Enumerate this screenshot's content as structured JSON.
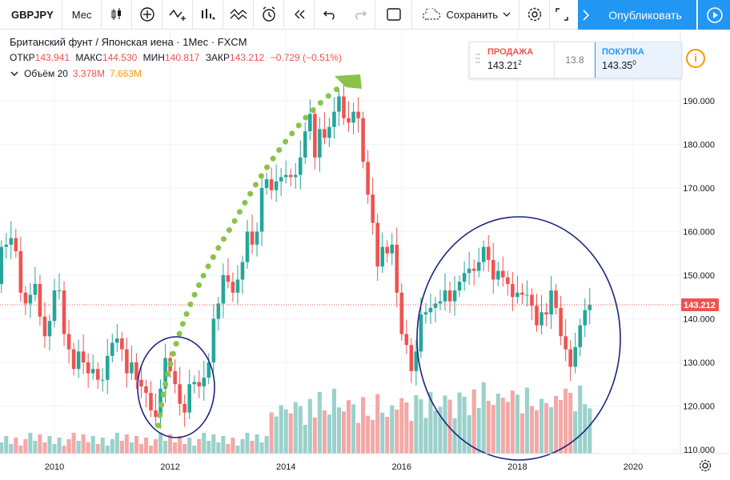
{
  "toolbar": {
    "symbol": "GBPJPY",
    "interval": "Мес",
    "save_label": "Сохранить",
    "publish_label": "Опубликовать",
    "icons": [
      "candles-icon",
      "add-indicator-icon",
      "compare-icon",
      "indicators-icon",
      "templates-icon",
      "alert-icon",
      "replay-icon",
      "undo-icon",
      "redo-icon",
      "layout-icon",
      "cloud-icon",
      "settings-icon",
      "fullscreen-icon",
      "publish-arrow-icon",
      "play-icon"
    ]
  },
  "legend": {
    "title": "Британский фунт / Японская иена · 1Мес · FXCM",
    "open_label": "ОТКР",
    "open": "143.941",
    "high_label": "МАКС",
    "high": "144.530",
    "low_label": "МИН",
    "low": "140.817",
    "close_label": "ЗАКР",
    "close": "143.212",
    "change": "−0.729 (−0.51%)",
    "volume_label": "Объём 20",
    "volume_value": "3.378M",
    "volume_ma": "7.663M"
  },
  "trade": {
    "sell_label": "ПРОДАЖА",
    "sell_price": "143.21",
    "sell_sup": "2",
    "spread": "13.8",
    "buy_label": "ПОКУПКА",
    "buy_price": "143.35",
    "buy_sup": "0",
    "info": "i"
  },
  "colors": {
    "up": "#26a69a",
    "down": "#ef5350",
    "vol_up": "#9ad1cb",
    "vol_down": "#f4a8a6",
    "price_line": "#ef5350",
    "ellipse": "#1a237e",
    "annotation": "#8bc34a",
    "accent": "#2196f3"
  },
  "chart_data": {
    "type": "candlestick",
    "symbol": "GBPJPY",
    "timeframe": "1M",
    "x_ticks": [
      "2010",
      "2012",
      "2014",
      "2016",
      "2018",
      "2020"
    ],
    "y_ticks": [
      "110.000",
      "120.000",
      "130.000",
      "140.000",
      "150.000",
      "160.000",
      "170.000",
      "180.000",
      "190.000"
    ],
    "ylim": [
      109,
      196
    ],
    "last_price": "143.212",
    "start": "2008-09",
    "monthly_close": [
      147.0,
      148.5,
      150.5,
      143.0,
      148.0,
      156.5,
      157.0,
      158.5,
      155.5,
      146.0,
      143.5,
      145.5,
      148.0,
      140.5,
      136.0,
      139.5,
      146.5,
      146.5,
      136.5,
      133.0,
      128.5,
      132.5,
      130.0,
      127.5,
      128.5,
      126.0,
      126.0,
      131.5,
      134.5,
      135.5,
      133.0,
      127.5,
      130.0,
      126.0,
      124.5,
      123.0,
      119.0,
      117.5,
      124.0,
      131.0,
      128.0,
      125.0,
      120.5,
      118.5,
      125.0,
      125.5,
      124.5,
      126.5,
      130.0,
      140.0,
      143.5,
      150.0,
      148.5,
      146.0,
      149.0,
      153.0,
      160.0,
      157.0,
      160.0,
      170.0,
      172.0,
      169.5,
      171.5,
      172.5,
      173.0,
      172.5,
      173.0,
      177.0,
      183.0,
      187.0,
      177.0,
      183.5,
      181.5,
      184.0,
      187.5,
      191.0,
      186.0,
      185.0,
      187.5,
      186.0,
      176.0,
      168.5,
      162.0,
      152.0,
      156.5,
      155.0,
      157.0,
      146.0,
      136.5,
      134.0,
      128.0,
      132.5,
      141.0,
      141.5,
      142.5,
      143.5,
      144.0,
      146.5,
      144.0,
      146.5,
      148.5,
      150.5,
      151.5,
      151.0,
      153.0,
      156.5,
      153.5,
      149.0,
      151.0,
      149.5,
      148.0,
      145.0,
      146.0,
      145.5,
      145.5,
      143.0,
      138.5,
      141.5,
      141.0,
      146.5,
      142.5,
      136.0,
      133.0,
      129.0,
      133.5,
      138.5,
      142.0,
      143.2
    ],
    "volume_scale": "relative"
  },
  "annotations": {
    "ellipses": 2,
    "dotted_arrow": true
  }
}
